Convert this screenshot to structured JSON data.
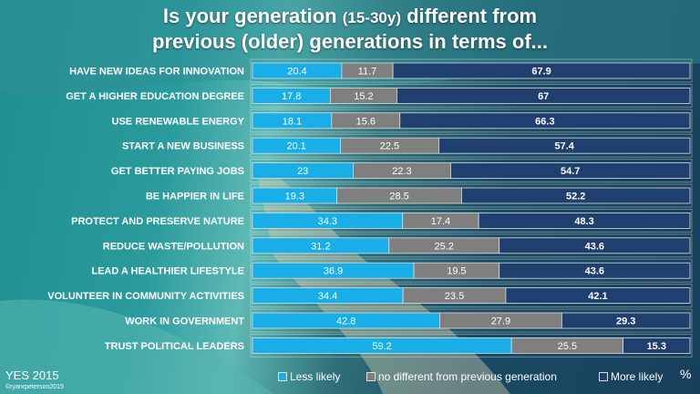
{
  "title": {
    "line1_pre": "Is your generation ",
    "line1_small": "(15-30y)",
    "line1_post": " different from",
    "line2": "previous (older) generations in terms of..."
  },
  "footer": {
    "source": "YES 2015",
    "credit": "©ryanrpeterson2015",
    "unit": "%"
  },
  "colors": {
    "less": "#1aaee8",
    "same": "#7f7f7f",
    "more": "#1f3f6e"
  },
  "chart_data": {
    "type": "bar",
    "orientation": "horizontal",
    "stacked": true,
    "xlim": [
      0,
      100
    ],
    "categories": [
      "HAVE NEW IDEAS FOR INNOVATION",
      "GET A HIGHER EDUCATION DEGREE",
      "USE RENEWABLE ENERGY",
      "START A NEW BUSINESS",
      "GET BETTER PAYING JOBS",
      "BE HAPPIER IN LIFE",
      "PROTECT AND PRESERVE NATURE",
      "REDUCE WASTE/POLLUTION",
      "LEAD A HEALTHIER LIFESTYLE",
      "VOLUNTEER IN COMMUNITY ACTIVITIES",
      "WORK IN GOVERNMENT",
      "TRUST POLITICAL LEADERS"
    ],
    "series": [
      {
        "name": "Less likely",
        "values": [
          20.4,
          17.8,
          18.1,
          20.1,
          23,
          19.3,
          34.3,
          31.2,
          36.9,
          34.4,
          42.8,
          59.2
        ]
      },
      {
        "name": "no different from previous generation",
        "values": [
          11.7,
          15.2,
          15.6,
          22.5,
          22.3,
          28.5,
          17.4,
          25.2,
          19.5,
          23.5,
          27.9,
          25.5
        ]
      },
      {
        "name": "More likely",
        "values": [
          67.9,
          67,
          66.3,
          57.4,
          54.7,
          52.2,
          48.3,
          43.6,
          43.6,
          42.1,
          29.3,
          15.3
        ]
      }
    ],
    "legend": "bottom"
  }
}
